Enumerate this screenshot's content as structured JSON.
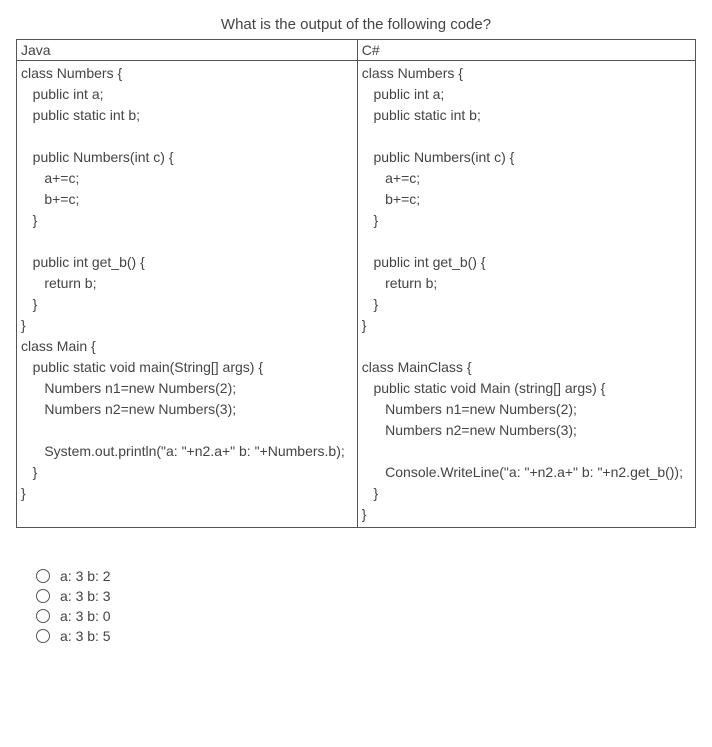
{
  "question": {
    "title": "What is the output of the following code?"
  },
  "table": {
    "headers": {
      "left": "Java",
      "right": "C#"
    },
    "code": {
      "java": "class Numbers {\n   public int a;\n   public static int b;\n\n   public Numbers(int c) {\n      a+=c;\n      b+=c;\n   }\n\n   public int get_b() {\n      return b;\n   }\n}\nclass Main {\n   public static void main(String[] args) {\n      Numbers n1=new Numbers(2);\n      Numbers n2=new Numbers(3);\n\n      System.out.println(\"a: \"+n2.a+\" b: \"+Numbers.b);\n   }\n}",
      "csharp": "class Numbers {\n   public int a;\n   public static int b;\n\n   public Numbers(int c) {\n      a+=c;\n      b+=c;\n   }\n\n   public int get_b() {\n      return b;\n   }\n}\n\nclass MainClass {\n   public static void Main (string[] args) {\n      Numbers n1=new Numbers(2);\n      Numbers n2=new Numbers(3);\n\n      Console.WriteLine(\"a: \"+n2.a+\" b: \"+n2.get_b());\n   }\n}"
    }
  },
  "options": [
    {
      "label": "a: 3 b: 2"
    },
    {
      "label": "a: 3 b: 3"
    },
    {
      "label": "a: 3 b: 0"
    },
    {
      "label": "a: 3 b: 5"
    }
  ]
}
